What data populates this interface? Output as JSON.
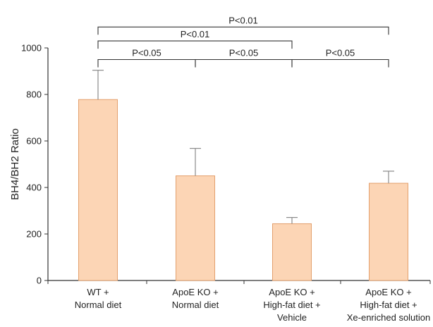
{
  "chart_data": {
    "type": "bar",
    "title": "",
    "xlabel": "",
    "ylabel": "BH4/BH2 Ratio",
    "ylim": [
      0,
      1000
    ],
    "yticks": [
      0,
      200,
      400,
      600,
      800,
      1000
    ],
    "grid": false,
    "legend": "none",
    "categories": [
      [
        "WT +",
        "Normal diet"
      ],
      [
        "ApoE KO +",
        "Normal diet"
      ],
      [
        "ApoE KO +",
        "High-fat diet +",
        "Vehicle"
      ],
      [
        "ApoE KO +",
        "High-fat diet +",
        "Xe-enriched solution"
      ]
    ],
    "values": [
      778,
      450,
      244,
      418
    ],
    "errors": [
      126,
      118,
      27,
      52
    ],
    "significance": [
      {
        "from": 0,
        "to": 3,
        "label": "P<0.01",
        "y": 1090
      },
      {
        "from": 0,
        "to": 2,
        "label": "P<0.01",
        "y": 1030
      },
      {
        "from": 0,
        "to": 1,
        "label": "P<0.05",
        "y": 950
      },
      {
        "from": 1,
        "to": 2,
        "label": "P<0.05",
        "y": 950
      },
      {
        "from": 2,
        "to": 3,
        "label": "P<0.05",
        "y": 950
      }
    ]
  },
  "colors": {
    "bar_fill": "#fcd5b5",
    "bar_stroke": "#e3a06d",
    "axis": "#333333",
    "error": "#8a8a8a",
    "bracket": "#333333"
  }
}
